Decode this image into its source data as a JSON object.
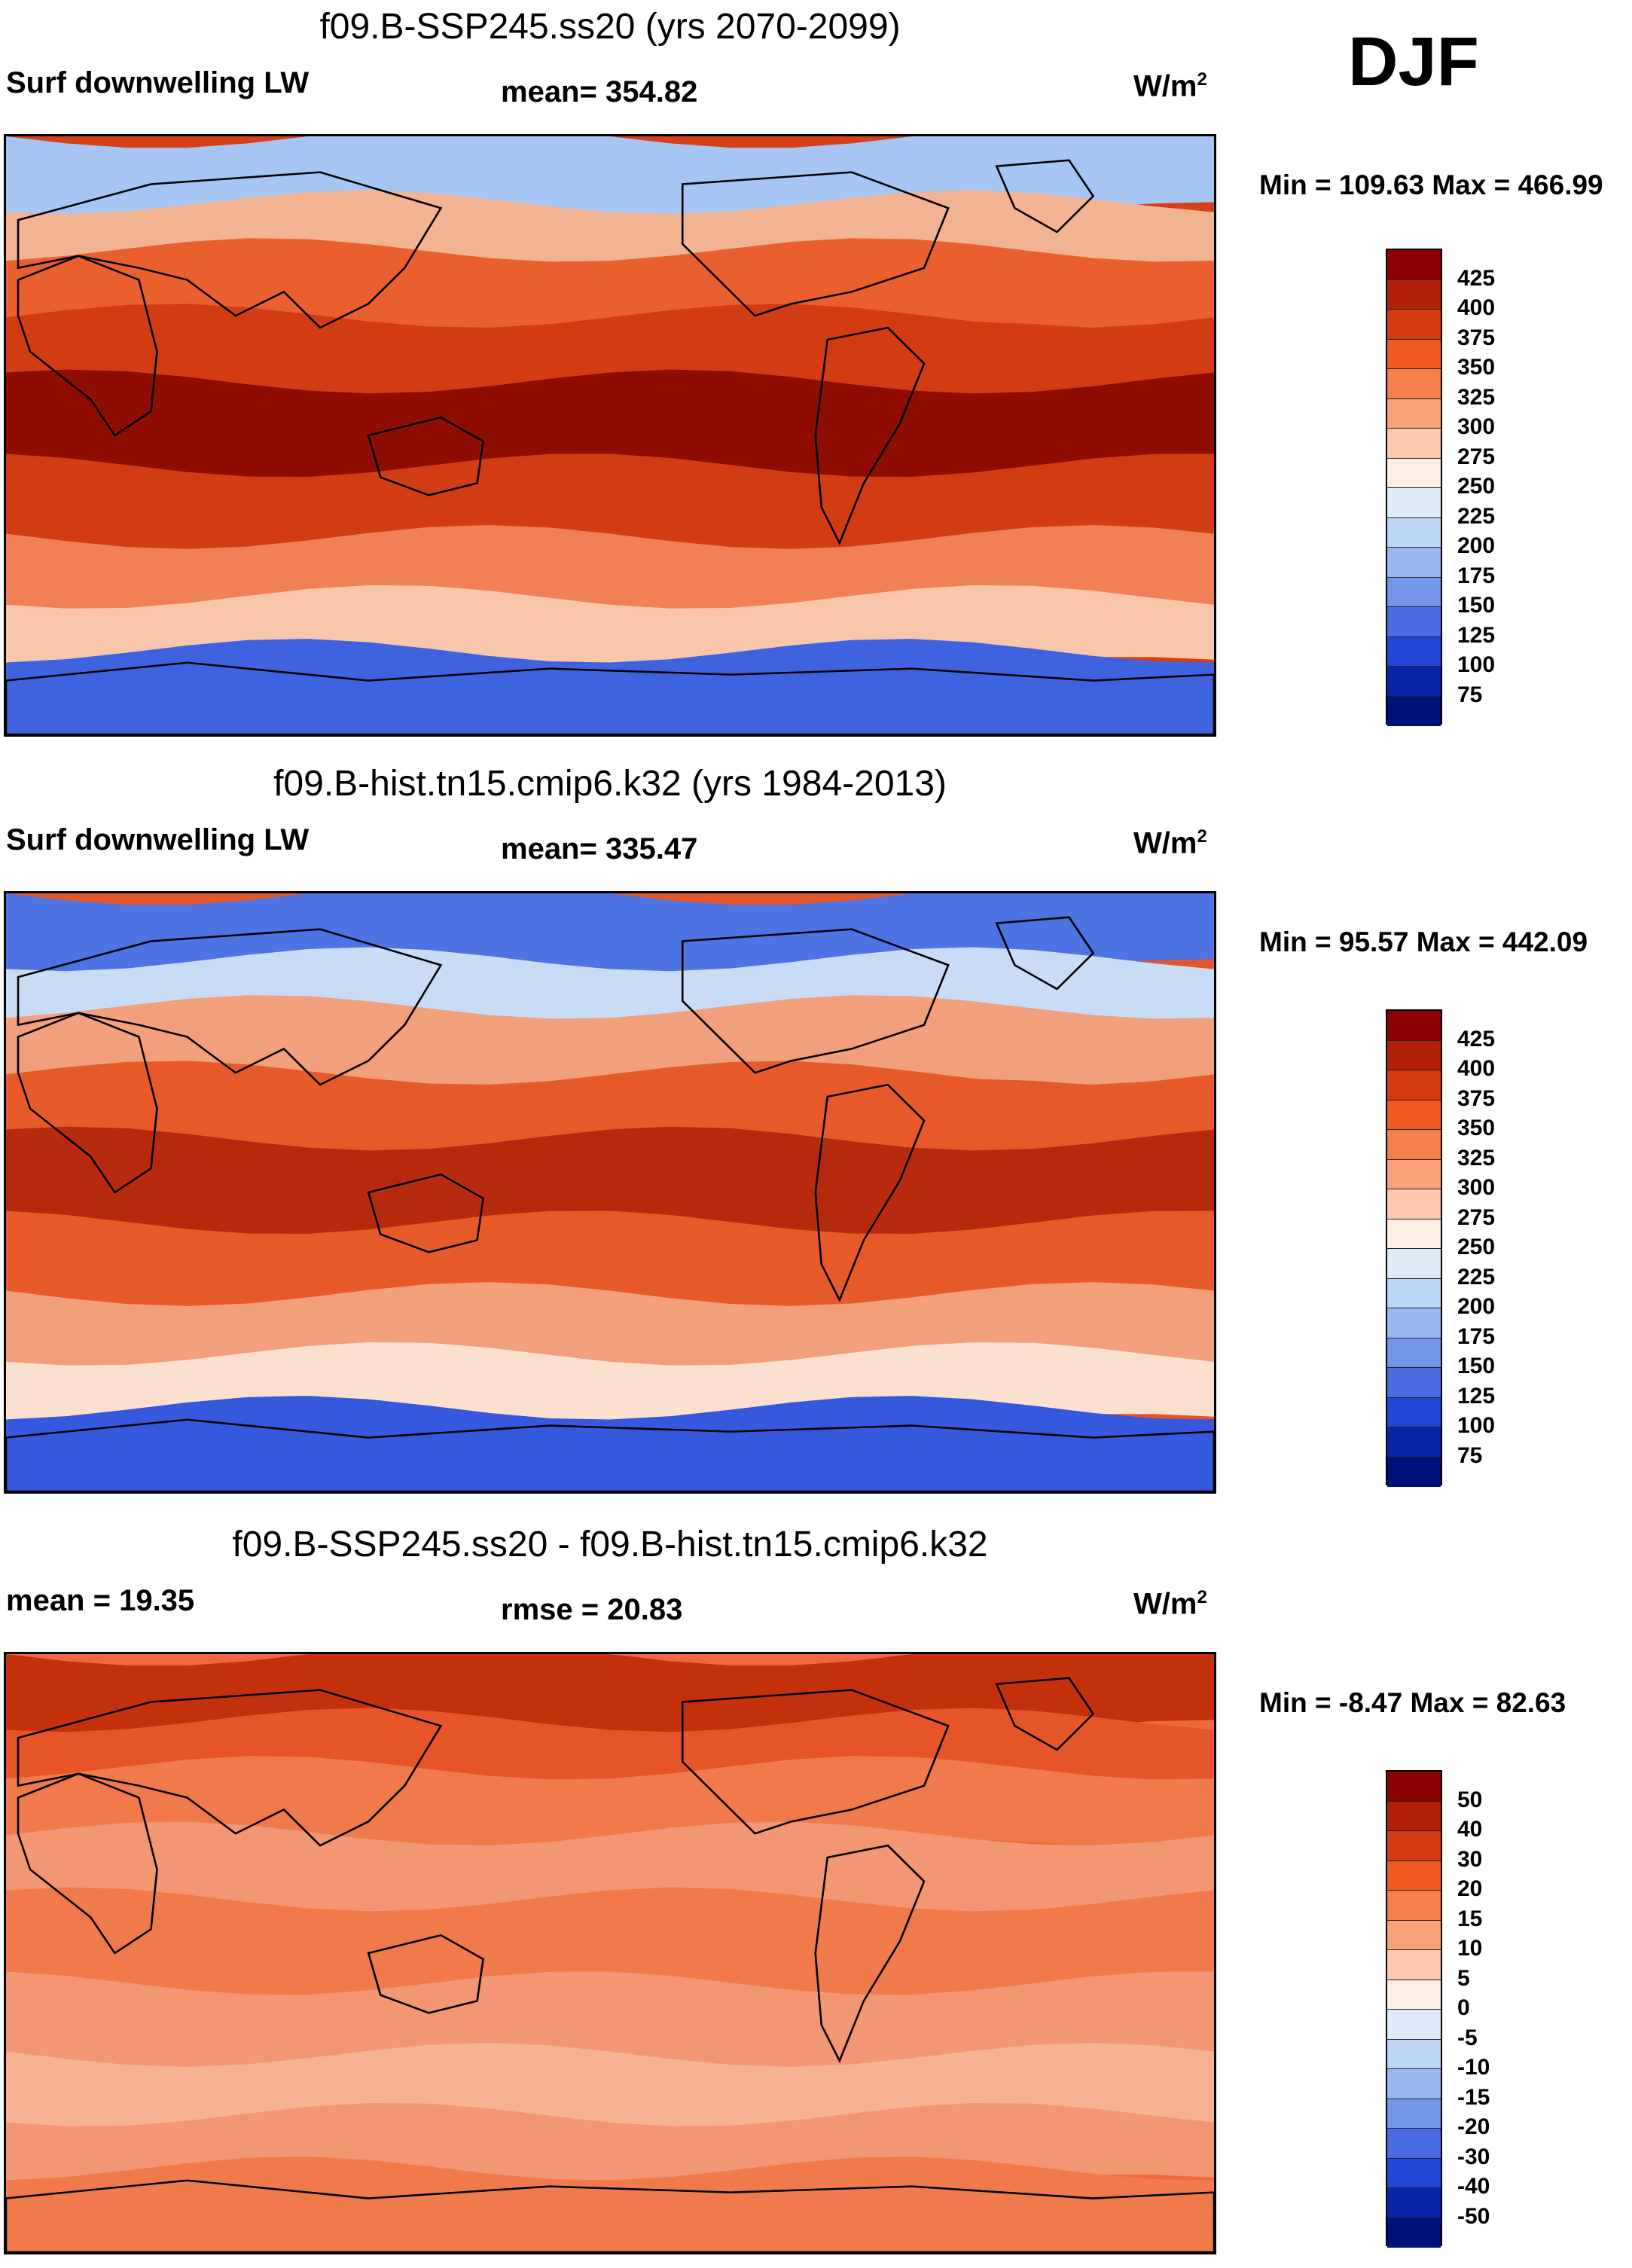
{
  "season": "DJF",
  "panels": [
    {
      "title": "f09.B-SSP245.ss20 (yrs 2070-2099)",
      "left_label": "Surf downwelling LW",
      "mean_label": "mean= 354.82",
      "units_base": "W/m",
      "units_exp": "2",
      "minmax": "Min = 109.63 Max = 466.99",
      "colorbar": {
        "ticks": [
          "425",
          "400",
          "375",
          "350",
          "325",
          "300",
          "275",
          "250",
          "225",
          "200",
          "175",
          "150",
          "125",
          "100",
          "75"
        ],
        "colors": [
          "#8b0000",
          "#b3200a",
          "#d33a10",
          "#ef5a20",
          "#f57f4a",
          "#f9a27a",
          "#fcc9ad",
          "#fdeee3",
          "#dfeaf8",
          "#bcd4f5",
          "#98b8ef",
          "#7396ea",
          "#4b6be3",
          "#2346d6",
          "#0a24a8",
          "#00127a"
        ]
      },
      "map": {
        "palette": "abs",
        "ocean": "#d5401a",
        "bands": [
          {
            "color": "#a7c5f2"
          },
          {
            "color": "#f2b393"
          },
          {
            "color": "#e95f2e"
          },
          {
            "color": "#d13c13"
          },
          {
            "color": "#8e0c02"
          },
          {
            "color": "#d13c13"
          },
          {
            "color": "#f08055"
          },
          {
            "color": "#f8c6ab"
          },
          {
            "color": "#3f63df"
          }
        ]
      }
    },
    {
      "title": "f09.B-hist.tn15.cmip6.k32 (yrs 1984-2013)",
      "left_label": "Surf downwelling LW",
      "mean_label": "mean= 335.47",
      "units_base": "W/m",
      "units_exp": "2",
      "minmax": "Min =  95.57 Max = 442.09",
      "colorbar": {
        "ticks": [
          "425",
          "400",
          "375",
          "350",
          "325",
          "300",
          "275",
          "250",
          "225",
          "200",
          "175",
          "150",
          "125",
          "100",
          "75"
        ],
        "colors": [
          "#8b0000",
          "#b3200a",
          "#d33a10",
          "#ef5a20",
          "#f57f4a",
          "#f9a27a",
          "#fcc9ad",
          "#fdeee3",
          "#dfeaf8",
          "#bcd4f5",
          "#98b8ef",
          "#7396ea",
          "#4b6be3",
          "#2346d6",
          "#0a24a8",
          "#00127a"
        ]
      },
      "map": {
        "palette": "abs",
        "ocean": "#e3562a",
        "bands": [
          {
            "color": "#4e73e2"
          },
          {
            "color": "#c9dcf6"
          },
          {
            "color": "#f29f7c"
          },
          {
            "color": "#e65a2a"
          },
          {
            "color": "#b52a0c"
          },
          {
            "color": "#e65a2a"
          },
          {
            "color": "#f29f7c"
          },
          {
            "color": "#fbe0d0"
          },
          {
            "color": "#3558dd"
          }
        ]
      }
    },
    {
      "title": "f09.B-SSP245.ss20 - f09.B-hist.tn15.cmip6.k32",
      "left_label": "mean =  19.35",
      "mean_label": "rmse =  20.83",
      "units_base": "W/m",
      "units_exp": "2",
      "minmax": "Min =  -8.47 Max =  82.63",
      "colorbar": {
        "ticks": [
          "50",
          "40",
          "30",
          "20",
          "15",
          "10",
          "5",
          "0",
          "-5",
          "-10",
          "-15",
          "-20",
          "-30",
          "-40",
          "-50"
        ],
        "colors": [
          "#8b0000",
          "#b3200a",
          "#d33a10",
          "#ef5a20",
          "#f57f4a",
          "#f9a27a",
          "#fcc9ad",
          "#fdeee3",
          "#dfeaf8",
          "#bcd4f5",
          "#98b8ef",
          "#7396ea",
          "#4b6be3",
          "#2346d6",
          "#0a24a8",
          "#00127a"
        ]
      },
      "map": {
        "palette": "diff",
        "ocean": "#ef6a3a",
        "bands": [
          {
            "color": "#c3300c"
          },
          {
            "color": "#e55527"
          },
          {
            "color": "#f07a4c"
          },
          {
            "color": "#f29673"
          },
          {
            "color": "#f07a4c"
          },
          {
            "color": "#f29673"
          },
          {
            "color": "#f6b193"
          },
          {
            "color": "#f29673"
          },
          {
            "color": "#f07a4c"
          }
        ]
      }
    }
  ]
}
